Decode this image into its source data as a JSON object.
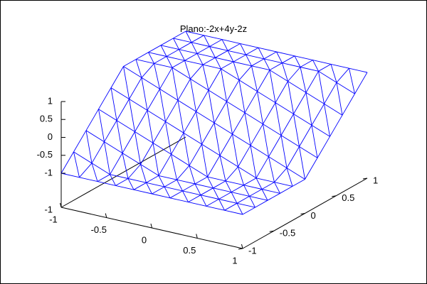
{
  "chart_data": {
    "type": "surface",
    "title": "Plano:-2x+4y-2z",
    "equation": "-2x+4y-2z = 0",
    "mesh_color": "#0000ff",
    "line_color": "#000000",
    "x_range": [
      -1,
      1
    ],
    "y_range": [
      -1,
      1
    ],
    "z_range": [
      -1,
      1
    ],
    "x_ticks": [
      -1,
      -0.5,
      0,
      0.5,
      1
    ],
    "y_ticks": [
      -1,
      -0.5,
      0,
      0.5,
      1
    ],
    "z_ticks": [
      -1,
      -0.5,
      0,
      0.5,
      1
    ],
    "x_tick_labels": [
      "-1",
      "-0.5",
      "0",
      "0.5",
      "1"
    ],
    "y_tick_labels": [
      "-1",
      "-0.5",
      "0",
      "0.5",
      "1"
    ],
    "z_tick_labels": [
      "-1",
      "-0.5",
      "0",
      "0.5",
      "1"
    ],
    "mesh_divisions": 10
  }
}
